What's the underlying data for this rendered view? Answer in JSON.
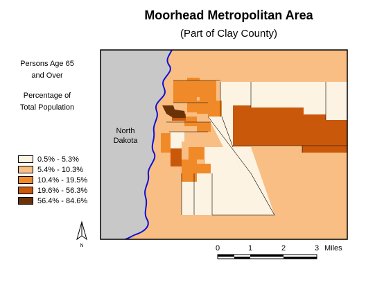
{
  "title": "Moorhead Metropolitan Area",
  "subtitle": "(Part of Clay County)",
  "legend": {
    "heading_lines": [
      "Persons Age 65",
      "and Over"
    ],
    "subheading_lines": [
      "Percentage of",
      "Total Population"
    ],
    "classes": [
      {
        "label": "0.5% - 5.3%",
        "color": "#fdf3e3"
      },
      {
        "label": "5.4% - 10.3%",
        "color": "#f9be83"
      },
      {
        "label": "10.4% - 19.5%",
        "color": "#f08a28"
      },
      {
        "label": "19.6% - 56.3%",
        "color": "#c9580a"
      },
      {
        "label": "56.4% - 84.6%",
        "color": "#6b3208"
      }
    ]
  },
  "map": {
    "state_label_lines": [
      "North",
      "Dakota"
    ],
    "state_color": "#c8c8c8",
    "river_color": "#1010d8"
  },
  "north_arrow_label": "N",
  "scale_bar": {
    "ticks": [
      "0",
      "1",
      "2",
      "3"
    ],
    "unit": "Miles"
  }
}
